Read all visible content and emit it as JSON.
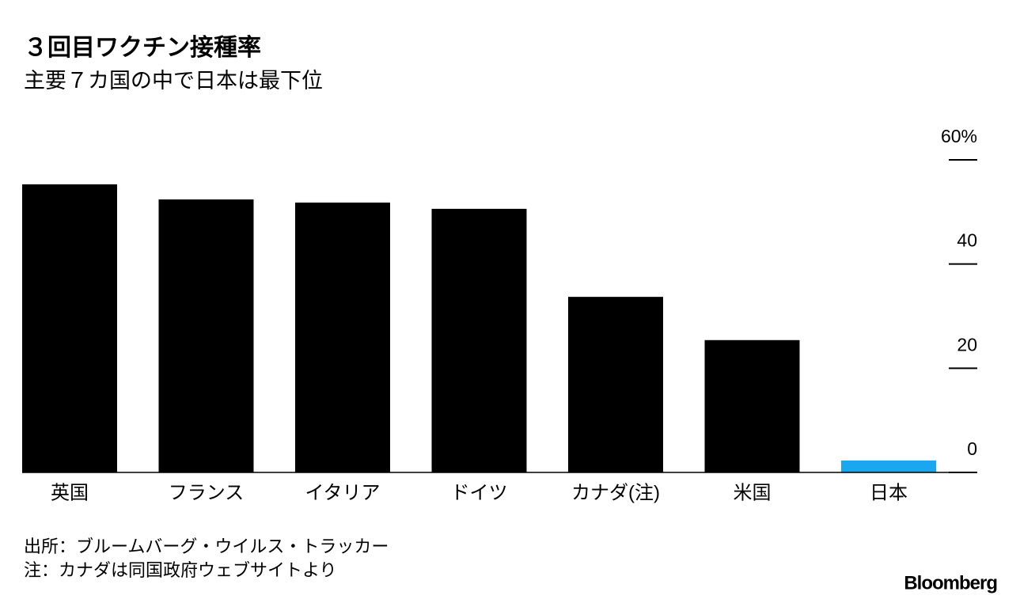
{
  "chart_data": {
    "type": "bar",
    "title": "３回目ワクチン接種率",
    "subtitle": "主要７カ国の中で日本は最下位",
    "categories": [
      "英国",
      "フランス",
      "イタリア",
      "ドイツ",
      "カナダ(注)",
      "米国",
      "日本"
    ],
    "values": [
      55.3,
      52.4,
      51.8,
      50.6,
      33.7,
      25.4,
      2.3
    ],
    "colors": [
      "#000000",
      "#000000",
      "#000000",
      "#000000",
      "#000000",
      "#000000",
      "#1ba6f0"
    ],
    "ylim": [
      0,
      60
    ],
    "yticks": [
      0,
      20,
      40,
      {
        "value": 60,
        "label": "60%"
      }
    ],
    "source": "出所：ブルームバーグ・ウイルス・トラッカー",
    "note": "注：カナダは同国政府ウェブサイトより",
    "brand": "Bloomberg"
  }
}
